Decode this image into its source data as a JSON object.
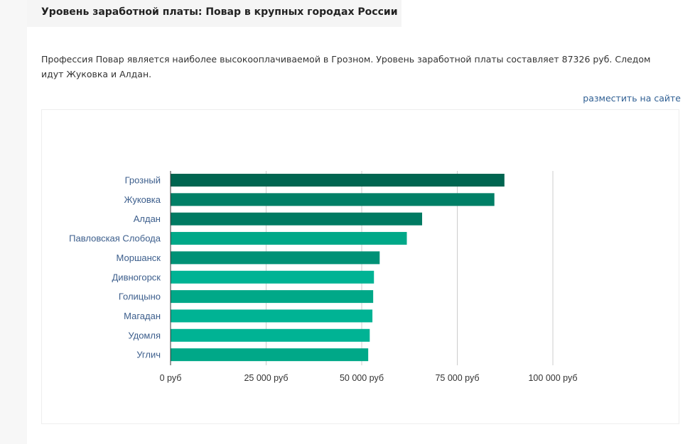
{
  "header": {
    "title": "Уровень заработной платы: Повар в крупных городах России"
  },
  "description": "Профессия Повар является наиболее высокооплачиваемой в Грозном. Уровень заработной платы составляет 87326 руб. Следом идут Жуковка и Алдан.",
  "embed_link": "разместить на сайте",
  "chart_data": {
    "type": "bar",
    "orientation": "horizontal",
    "categories": [
      "Грозный",
      "Жуковка",
      "Алдан",
      "Павловская Слобода",
      "Моршанск",
      "Дивногорск",
      "Голицыно",
      "Магадан",
      "Удомля",
      "Углич"
    ],
    "values": [
      87326,
      84700,
      65800,
      61800,
      54700,
      53200,
      53000,
      52800,
      52100,
      51700
    ],
    "colors": [
      "#006550",
      "#007f66",
      "#007a62",
      "#00a888",
      "#009176",
      "#00b394",
      "#00a888",
      "#00b394",
      "#00b394",
      "#00a888"
    ],
    "xlim": [
      0,
      100000
    ],
    "ticks": [
      0,
      25000,
      50000,
      75000,
      100000
    ],
    "tick_labels": [
      "0 руб",
      "25 000 руб",
      "50 000 руб",
      "75 000 руб",
      "100 000 руб"
    ],
    "grid": true,
    "legend": "none"
  }
}
